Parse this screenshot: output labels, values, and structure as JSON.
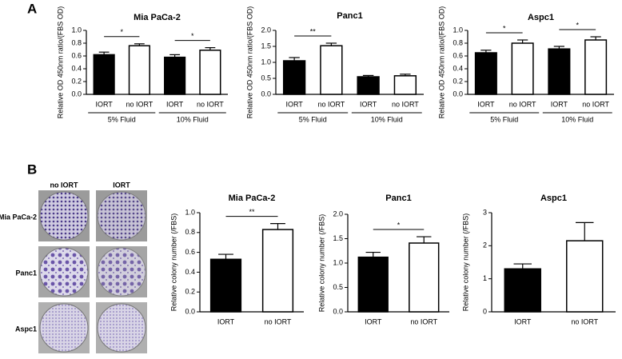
{
  "panel_labels": [
    "A",
    "B"
  ],
  "colony_images": {
    "columns": [
      "no IORT",
      "IORT"
    ],
    "rows": [
      "Mia PaCa-2",
      "Panc1",
      "Aspc1"
    ]
  },
  "chart_data": [
    {
      "type": "bar",
      "title": "Mia PaCa-2",
      "y_label": "Relative OD 450nm ratio/(FBS OD)",
      "categories": [
        "IORT",
        "no IORT",
        "IORT",
        "no IORT"
      ],
      "values": [
        0.62,
        0.76,
        0.58,
        0.69
      ],
      "errors": [
        0.04,
        0.03,
        0.04,
        0.04
      ],
      "colors": [
        "#000000",
        "#ffffff",
        "#000000",
        "#ffffff"
      ],
      "groups": [
        {
          "label": "5% Fluid",
          "significance": "*"
        },
        {
          "label": "10% Fluid",
          "significance": "*"
        }
      ],
      "ylim": [
        0,
        1.0
      ],
      "yticks": [
        {
          "value": 0,
          "label": "0.0"
        },
        0.2,
        0.4,
        0.6,
        0.8,
        {
          "value": 1,
          "label": "1.0"
        }
      ]
    },
    {
      "type": "bar",
      "title": "Panc1",
      "y_label": "Relative OD 450nm ratio/(FBS OD)",
      "categories": [
        "IORT",
        "no IORT",
        "IORT",
        "no IORT"
      ],
      "values": [
        1.05,
        1.52,
        0.55,
        0.58
      ],
      "errors": [
        0.1,
        0.08,
        0.04,
        0.05
      ],
      "colors": [
        "#000000",
        "#ffffff",
        "#000000",
        "#ffffff"
      ],
      "groups": [
        {
          "label": "5% Fluid",
          "significance": "**"
        },
        {
          "label": "10% Fluid"
        }
      ],
      "ylim": [
        0,
        2.0
      ],
      "yticks": [
        {
          "value": 0,
          "label": "0.0"
        },
        0.5,
        {
          "value": 1,
          "label": "1.0"
        },
        1.5,
        {
          "value": 2,
          "label": "2.0"
        }
      ]
    },
    {
      "type": "bar",
      "title": "Aspc1",
      "y_label": "Relative OD 450nm ratio/(FBS OD)",
      "categories": [
        "IORT",
        "no IORT",
        "IORT",
        "no IORT"
      ],
      "values": [
        0.65,
        0.8,
        0.71,
        0.85
      ],
      "errors": [
        0.04,
        0.05,
        0.04,
        0.05
      ],
      "colors": [
        "#000000",
        "#ffffff",
        "#000000",
        "#ffffff"
      ],
      "groups": [
        {
          "label": "5% Fluid",
          "significance": "*"
        },
        {
          "label": "10% Fluid",
          "significance": "*"
        }
      ],
      "ylim": [
        0,
        1.0
      ],
      "yticks": [
        {
          "value": 0,
          "label": "0.0"
        },
        0.2,
        0.4,
        0.6,
        0.8,
        {
          "value": 1,
          "label": "1.0"
        }
      ]
    },
    {
      "type": "bar",
      "title": "Mia PaCa-2",
      "y_label": "Relative colony number (/FBS)",
      "categories": [
        "IORT",
        "no IORT"
      ],
      "values": [
        0.53,
        0.83
      ],
      "errors": [
        0.05,
        0.06
      ],
      "colors": [
        "#000000",
        "#ffffff"
      ],
      "significance": "**",
      "ylim": [
        0,
        1.0
      ],
      "yticks": [
        {
          "value": 0,
          "label": "0.0"
        },
        0.2,
        0.4,
        0.6,
        0.8,
        {
          "value": 1,
          "label": "1.0"
        }
      ]
    },
    {
      "type": "bar",
      "title": "Panc1",
      "y_label": "Relative colony number (/FBS)",
      "categories": [
        "IORT",
        "no IORT"
      ],
      "values": [
        1.12,
        1.41
      ],
      "errors": [
        0.1,
        0.13
      ],
      "colors": [
        "#000000",
        "#ffffff"
      ],
      "significance": "*",
      "ylim": [
        0,
        2.0
      ],
      "yticks": [
        {
          "value": 0,
          "label": "0.0"
        },
        0.5,
        {
          "value": 1,
          "label": "1.0"
        },
        1.5,
        {
          "value": 2,
          "label": "2.0"
        }
      ]
    },
    {
      "type": "bar",
      "title": "Aspc1",
      "y_label": "Relative colony number (/FBS)",
      "categories": [
        "IORT",
        "no IORT"
      ],
      "values": [
        1.3,
        2.15
      ],
      "errors": [
        0.15,
        0.55
      ],
      "colors": [
        "#000000",
        "#ffffff"
      ],
      "ylim": [
        0,
        3
      ],
      "yticks": [
        0,
        1,
        2,
        3
      ]
    }
  ]
}
